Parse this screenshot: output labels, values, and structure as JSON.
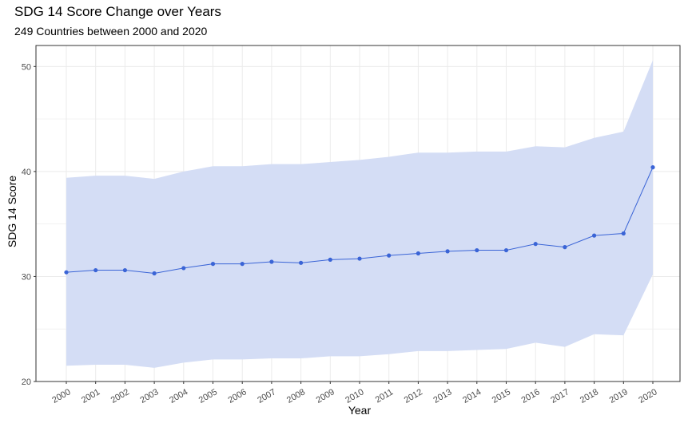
{
  "chart_data": {
    "type": "line",
    "title": "SDG 14 Score Change over Years",
    "subtitle": "249 Countries between 2000 and 2020",
    "xlabel": "Year",
    "ylabel": "SDG 14 Score",
    "ylim": [
      20,
      52
    ],
    "yticks": [
      20,
      30,
      40,
      50
    ],
    "categories": [
      "2000",
      "2001",
      "2002",
      "2003",
      "2004",
      "2005",
      "2006",
      "2007",
      "2008",
      "2009",
      "2010",
      "2011",
      "2012",
      "2013",
      "2014",
      "2015",
      "2016",
      "2017",
      "2018",
      "2019",
      "2020"
    ],
    "series": [
      {
        "values": [
          30.4,
          30.6,
          30.6,
          30.3,
          30.8,
          31.2,
          31.2,
          31.4,
          31.3,
          31.6,
          31.7,
          32.0,
          32.2,
          32.4,
          32.5,
          32.5,
          33.1,
          32.8,
          33.9,
          34.1,
          40.4
        ]
      }
    ],
    "band_upper": [
      39.4,
      39.6,
      39.6,
      39.3,
      40.0,
      40.5,
      40.5,
      40.7,
      40.7,
      40.9,
      41.1,
      41.4,
      41.8,
      41.8,
      41.9,
      41.9,
      42.4,
      42.3,
      43.2,
      43.8,
      50.6
    ],
    "band_lower": [
      21.5,
      21.6,
      21.6,
      21.3,
      21.8,
      22.1,
      22.1,
      22.2,
      22.2,
      22.4,
      22.4,
      22.6,
      22.9,
      22.9,
      23.0,
      23.1,
      23.7,
      23.3,
      24.5,
      24.4,
      30.2
    ],
    "grid": true,
    "legend": "none",
    "colors": {
      "line": "#3a64d6",
      "point": "#3a64d6",
      "band": "#d4ddf5",
      "grid": "#ebebeb"
    }
  }
}
